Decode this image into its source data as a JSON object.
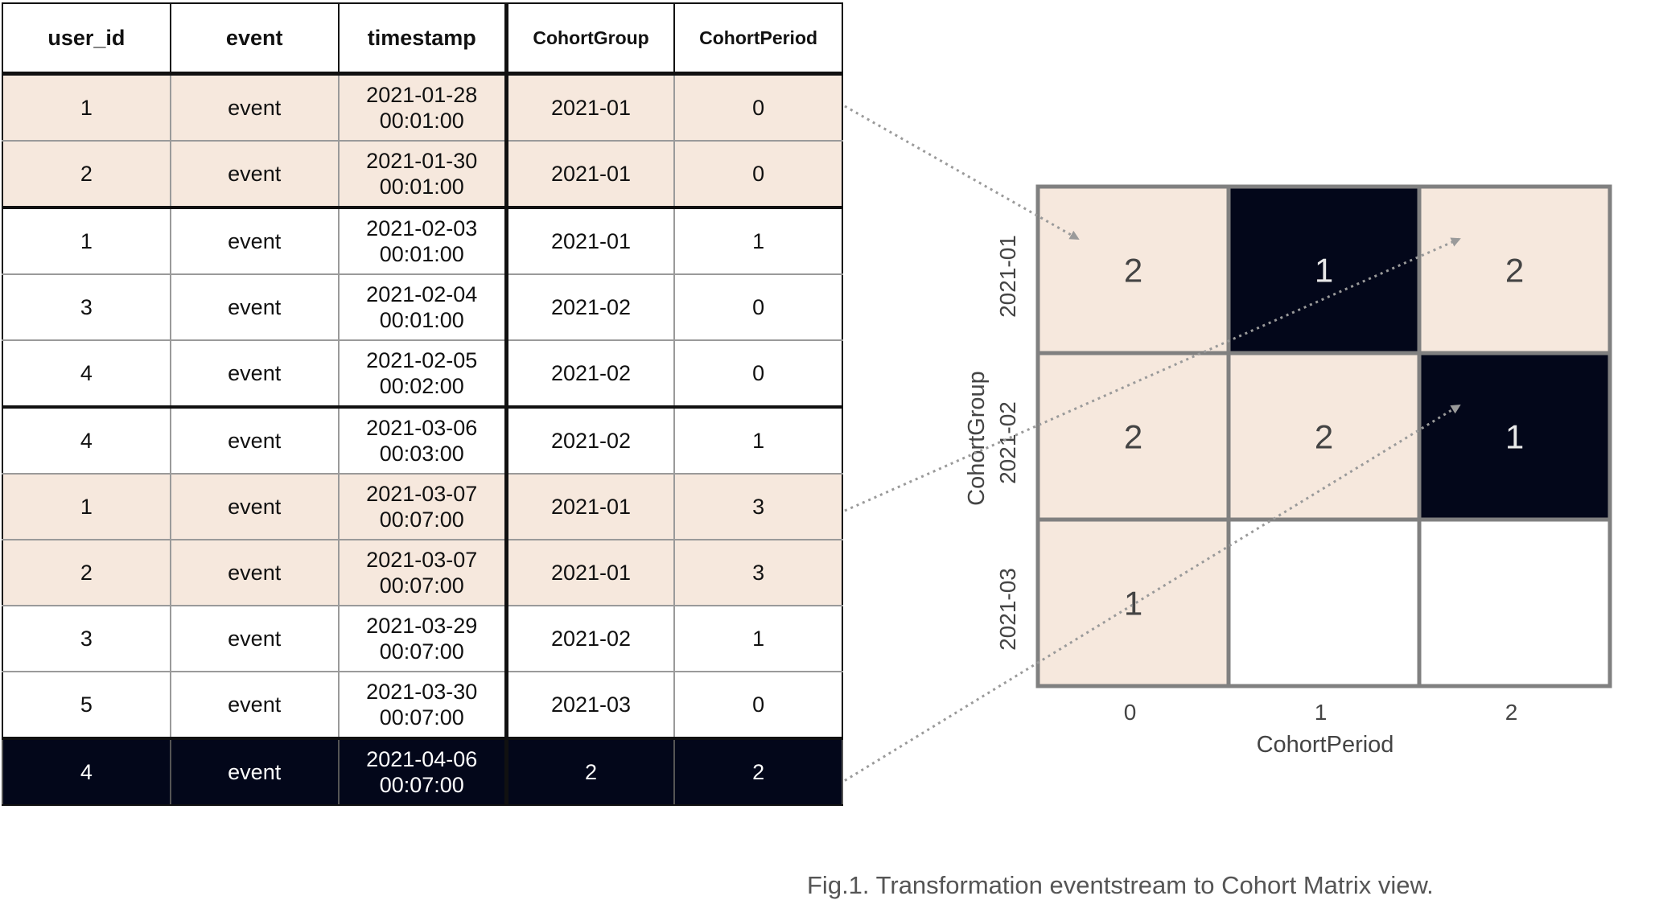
{
  "table": {
    "headers": [
      "user_id",
      "event",
      "timestamp",
      "CohortGroup",
      "CohortPeriod"
    ],
    "rows": [
      {
        "user_id": "1",
        "event": "event",
        "ts_date": "2021-01-28",
        "ts_time": "00:01:00",
        "cohort_group": "2021-01",
        "cohort_period": "0",
        "highlight": "peach"
      },
      {
        "user_id": "2",
        "event": "event",
        "ts_date": "2021-01-30",
        "ts_time": "00:01:00",
        "cohort_group": "2021-01",
        "cohort_period": "0",
        "highlight": "peach"
      },
      {
        "user_id": "1",
        "event": "event",
        "ts_date": "2021-02-03",
        "ts_time": "00:01:00",
        "cohort_group": "2021-01",
        "cohort_period": "1",
        "highlight": "none"
      },
      {
        "user_id": "3",
        "event": "event",
        "ts_date": "2021-02-04",
        "ts_time": "00:01:00",
        "cohort_group": "2021-02",
        "cohort_period": "0",
        "highlight": "none"
      },
      {
        "user_id": "4",
        "event": "event",
        "ts_date": "2021-02-05",
        "ts_time": "00:02:00",
        "cohort_group": "2021-02",
        "cohort_period": "0",
        "highlight": "none"
      },
      {
        "user_id": "4",
        "event": "event",
        "ts_date": "2021-03-06",
        "ts_time": "00:03:00",
        "cohort_group": "2021-02",
        "cohort_period": "1",
        "highlight": "none"
      },
      {
        "user_id": "1",
        "event": "event",
        "ts_date": "2021-03-07",
        "ts_time": "00:07:00",
        "cohort_group": "2021-01",
        "cohort_period": "3",
        "highlight": "peach"
      },
      {
        "user_id": "2",
        "event": "event",
        "ts_date": "2021-03-07",
        "ts_time": "00:07:00",
        "cohort_group": "2021-01",
        "cohort_period": "3",
        "highlight": "peach"
      },
      {
        "user_id": "3",
        "event": "event",
        "ts_date": "2021-03-29",
        "ts_time": "00:07:00",
        "cohort_group": "2021-02",
        "cohort_period": "1",
        "highlight": "none"
      },
      {
        "user_id": "5",
        "event": "event",
        "ts_date": "2021-03-30",
        "ts_time": "00:07:00",
        "cohort_group": "2021-03",
        "cohort_period": "0",
        "highlight": "none"
      },
      {
        "user_id": "4",
        "event": "event",
        "ts_date": "2021-04-06",
        "ts_time": "00:07:00",
        "cohort_group": "2",
        "cohort_period": "2",
        "highlight": "dark"
      }
    ]
  },
  "matrix": {
    "y_axis_label": "CohortGroup",
    "x_axis_label": "CohortPeriod",
    "row_labels": [
      "2021-01",
      "2021-02",
      "2021-03"
    ],
    "col_labels": [
      "0",
      "1",
      "2"
    ],
    "cells": [
      [
        {
          "value": "2",
          "style": "peach"
        },
        {
          "value": "1",
          "style": "dark"
        },
        {
          "value": "2",
          "style": "peach"
        }
      ],
      [
        {
          "value": "2",
          "style": "peach"
        },
        {
          "value": "2",
          "style": "peach"
        },
        {
          "value": "1",
          "style": "dark"
        }
      ],
      [
        {
          "value": "1",
          "style": "peach"
        },
        {
          "value": "",
          "style": "empty"
        },
        {
          "value": "",
          "style": "empty"
        }
      ]
    ]
  },
  "arrows": [
    {
      "from_row": 1,
      "to_cell": [
        0,
        0
      ]
    },
    {
      "from_row": 7,
      "to_cell": [
        0,
        2
      ]
    },
    {
      "from_row": 11,
      "to_cell": [
        1,
        2
      ]
    }
  ],
  "colors": {
    "peach": "#f6e8dd",
    "dark": "#03071a",
    "grid_border": "#808080",
    "arrow": "#9a9a9a",
    "caption": "#555555"
  },
  "caption": "Fig.1. Transformation eventstream to Cohort Matrix view."
}
